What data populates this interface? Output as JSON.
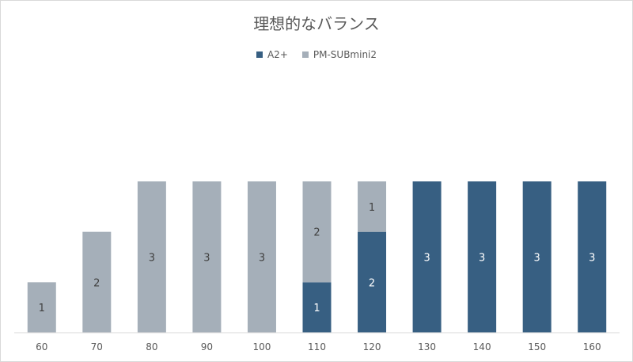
{
  "chart_data": {
    "type": "bar",
    "stacked": true,
    "title": "理想的なバランス",
    "categories": [
      "60",
      "70",
      "80",
      "90",
      "100",
      "110",
      "120",
      "130",
      "140",
      "150",
      "160"
    ],
    "series": [
      {
        "name": "A2+",
        "color": "#375f82",
        "values": [
          0,
          0,
          0,
          0,
          0,
          1,
          2,
          3,
          3,
          3,
          3
        ]
      },
      {
        "name": "PM-SUBmini2",
        "color": "#a5afb9",
        "values": [
          1,
          2,
          3,
          3,
          3,
          2,
          1,
          0,
          0,
          0,
          0
        ]
      }
    ],
    "ylim": [
      0,
      3
    ],
    "legend_position": "top",
    "grid": false,
    "data_labels": true
  }
}
